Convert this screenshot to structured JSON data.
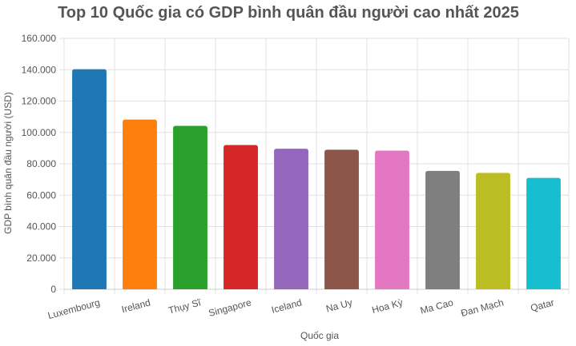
{
  "chart_data": {
    "type": "bar",
    "title": "Top 10 Quốc gia có GDP bình quân đầu người cao nhất 2025",
    "xlabel": "Quốc gia",
    "ylabel": "GDP bình quân đầu người (USD)",
    "categories": [
      "Luxembourg",
      "Ireland",
      "Thụy Sĩ",
      "Singapore",
      "Iceland",
      "Na Uy",
      "Hoa Kỳ",
      "Ma Cao",
      "Đan Mạch",
      "Qatar"
    ],
    "values": [
      140300,
      108200,
      104200,
      92000,
      89600,
      89000,
      88400,
      75500,
      74200,
      71000
    ],
    "colors": [
      "#1f77b4",
      "#ff7f0e",
      "#2ca02c",
      "#d62728",
      "#9467bd",
      "#8c564b",
      "#e377c2",
      "#7f7f7f",
      "#bcbd22",
      "#17becf"
    ],
    "ylim": [
      0,
      160000
    ],
    "yticks": [
      0,
      20000,
      40000,
      60000,
      80000,
      100000,
      120000,
      140000,
      160000
    ],
    "ytick_labels": [
      "0",
      "20.000",
      "40.000",
      "60.000",
      "80.000",
      "100.000",
      "120.000",
      "140.000",
      "160.000"
    ],
    "grid": true,
    "legend": "none"
  }
}
